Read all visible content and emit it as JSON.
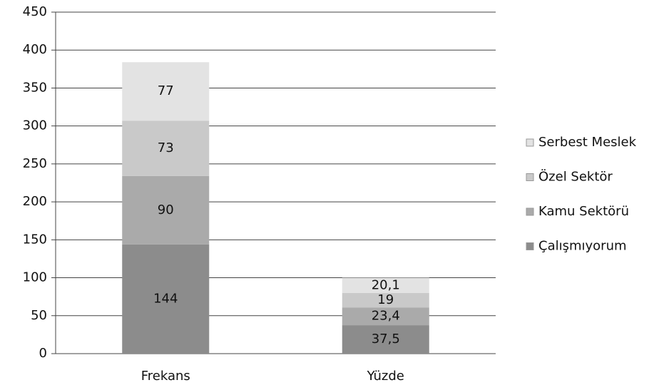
{
  "chart_data": {
    "type": "stacked-bar",
    "categories": [
      "Frekans",
      "Yüzde"
    ],
    "series": [
      {
        "name": "Çalışmıyorum",
        "color": "#8c8c8c",
        "values": [
          144,
          37.5
        ],
        "value_labels": [
          "144",
          "37,5"
        ]
      },
      {
        "name": "Kamu Sektörü",
        "color": "#aaaaaa",
        "values": [
          90,
          23.4
        ],
        "value_labels": [
          "90",
          "23,4"
        ]
      },
      {
        "name": "Özel Sektör",
        "color": "#c9c9c9",
        "values": [
          73,
          19
        ],
        "value_labels": [
          "73",
          "19"
        ]
      },
      {
        "name": "Serbest Meslek",
        "color": "#e3e3e3",
        "values": [
          77,
          20.1
        ],
        "value_labels": [
          "77",
          "20,1"
        ]
      }
    ],
    "ylim": [
      0,
      450
    ],
    "yticks": [
      0,
      50,
      100,
      150,
      200,
      250,
      300,
      350,
      400,
      450
    ],
    "grid": true
  }
}
